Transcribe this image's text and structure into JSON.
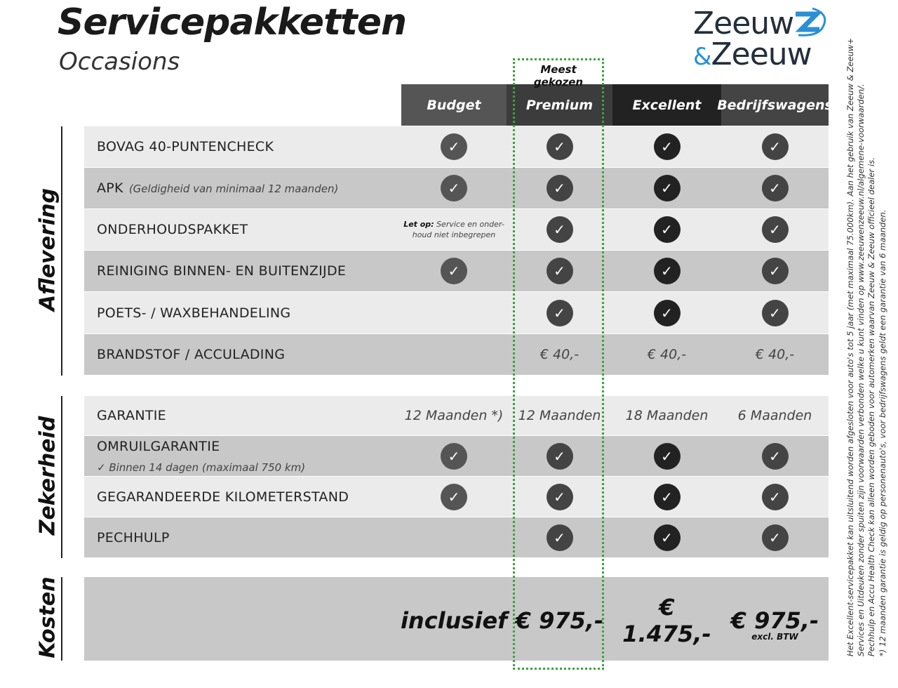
{
  "header": {
    "title": "Servicepakketten",
    "subtitle": "Occasions"
  },
  "logo": {
    "line1": "Zeeuw",
    "amp": "&",
    "line2": "Zeeuw",
    "accent": "#2b8fd4"
  },
  "highlight": {
    "label": "Meest gekozen",
    "color": "#3aa53a"
  },
  "columns": [
    {
      "label": "Budget",
      "bg": "#555555",
      "check": "#555555"
    },
    {
      "label": "Premium",
      "bg": "#3c3c3c",
      "check": "#444444"
    },
    {
      "label": "Excellent",
      "bg": "#222222",
      "check": "#222222"
    },
    {
      "label": "Bedrijfswagens",
      "bg": "#444444",
      "check": "#444444"
    }
  ],
  "sections": [
    {
      "label": "Aflevering"
    },
    {
      "label": "Zekerheid"
    },
    {
      "label": "Kosten"
    }
  ],
  "rows": [
    {
      "label": "BOVAG 40-PUNTENCHECK",
      "cells": [
        "check",
        "check",
        "check",
        "check"
      ]
    },
    {
      "label": "APK",
      "sub": "(Geldigheid van minimaal 12 maanden)",
      "cells": [
        "check",
        "check",
        "check",
        "check"
      ]
    },
    {
      "label": "ONDERHOUDSPAKKET",
      "note": {
        "bold": "Let op:",
        "text": "Service en onder- houd niet inbegrepen"
      },
      "cells": [
        "",
        "check",
        "check",
        "check"
      ]
    },
    {
      "label": "REINIGING BINNEN- EN BUITENZIJDE",
      "cells": [
        "check",
        "check",
        "check",
        "check"
      ]
    },
    {
      "label": "POETS- / WAXBEHANDELING",
      "cells": [
        "",
        "check",
        "check",
        "check"
      ]
    },
    {
      "label": "BRANDSTOF / ACCULADING",
      "cells": [
        "",
        "€ 40,-",
        "€ 40,-",
        "€ 40,-"
      ]
    },
    {
      "label": "GARANTIE",
      "cells": [
        "12 Maanden *)",
        "12 Maanden",
        "18 Maanden",
        "6 Maanden"
      ]
    },
    {
      "label": "OMRUILGARANTIE",
      "sub2": "✓   Binnen 14 dagen (maximaal 750 km)",
      "cells": [
        "check",
        "check",
        "check",
        "check"
      ]
    },
    {
      "label": "GEGARANDEERDE KILOMETERSTAND",
      "cells": [
        "check",
        "check",
        "check",
        "check"
      ]
    },
    {
      "label": "PECHHULP",
      "cells": [
        "",
        "check",
        "check",
        "check"
      ]
    }
  ],
  "costs": {
    "values": [
      "inclusief",
      "€ 975,-",
      "€ 1.475,-",
      "€ 975,-"
    ],
    "excl": "excl. BTW"
  },
  "disclaimer": [
    "Het Excellent-servicepakket kan uitsluitend worden afgesloten voor auto's tot 5 jaar (met maximaal 75.000km). Aan het gebruik van Zeeuw & Zeeuw+",
    "Services en Uitdeuken zonder spuiten zijn voorwaarden verbonden welke u kunt vinden op www.zeeuwenzeeuw.nl/algemene-voorwaarden/.",
    "Pechhulp en Accu Health Check kan alleen worden geboden voor automerken waarvan Zeeuw & Zeeuw officieel dealer is.",
    "*) 12 maanden garantie is geldig op personenauto's, voor bedrijfswagens geldt een garantie van 6 maanden."
  ]
}
